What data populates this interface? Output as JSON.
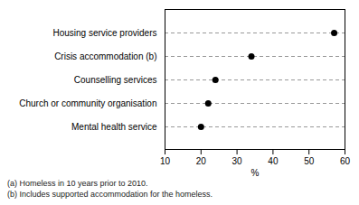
{
  "chart_data": {
    "type": "dot",
    "categories": [
      "Mental health service",
      "Church or community organisation",
      "Counselling services",
      "Crisis accommodation (b)",
      "Housing service providers"
    ],
    "values": [
      20,
      22,
      24,
      34,
      57
    ],
    "xlim": [
      10,
      60
    ],
    "xticks": [
      10,
      20,
      30,
      40,
      50,
      60
    ],
    "xlabel": "%",
    "color": "#000000",
    "marker": "circle",
    "line_style": "dashed",
    "annotations": [
      "(a) Homeless in 10 years prior to 2010.",
      "(b) Includes supported accommodation for the homeless."
    ]
  }
}
